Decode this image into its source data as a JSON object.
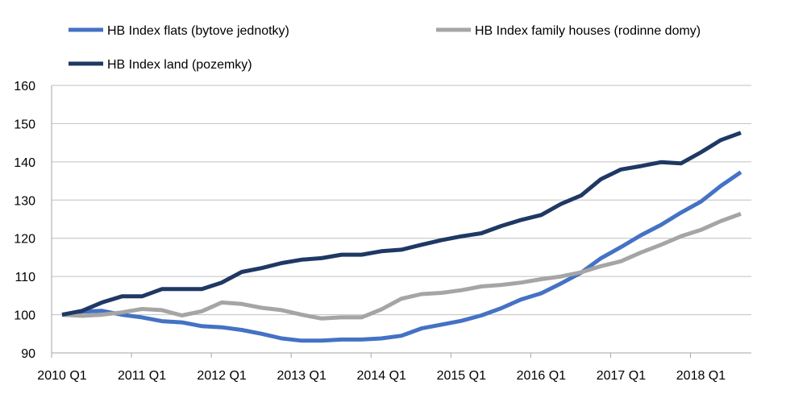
{
  "chart_data": {
    "type": "line",
    "title": "",
    "xlabel": "",
    "ylabel": "",
    "ylim": [
      90,
      160
    ],
    "yticks": [
      90,
      100,
      110,
      120,
      130,
      140,
      150,
      160
    ],
    "grid": true,
    "legend_placement": "top",
    "xtick_labels": [
      "2010 Q1",
      "2011 Q1",
      "2012 Q1",
      "2013 Q1",
      "2014 Q1",
      "2015 Q1",
      "2016 Q1",
      "2017 Q1",
      "2018 Q1"
    ],
    "x": [
      "2010 Q1",
      "2010 Q2",
      "2010 Q3",
      "2010 Q4",
      "2011 Q1",
      "2011 Q2",
      "2011 Q3",
      "2011 Q4",
      "2012 Q1",
      "2012 Q2",
      "2012 Q3",
      "2012 Q4",
      "2013 Q1",
      "2013 Q2",
      "2013 Q3",
      "2013 Q4",
      "2014 Q1",
      "2014 Q2",
      "2014 Q3",
      "2014 Q4",
      "2015 Q1",
      "2015 Q2",
      "2015 Q3",
      "2015 Q4",
      "2016 Q1",
      "2016 Q2",
      "2016 Q3",
      "2016 Q4",
      "2017 Q1",
      "2017 Q2",
      "2017 Q3",
      "2017 Q4",
      "2018 Q1",
      "2018 Q2",
      "2018 Q3"
    ],
    "series": [
      {
        "name": "HB Index flats (bytove jednotky)",
        "color": "#4472c4",
        "values": [
          100,
          100.8,
          101,
          100,
          99.3,
          98.3,
          98,
          97,
          96.7,
          96,
          95,
          93.8,
          93.2,
          93.2,
          93.5,
          93.5,
          93.8,
          94.5,
          96.4,
          97.4,
          98.4,
          99.8,
          101.7,
          104,
          105.6,
          108.2,
          111,
          114.8,
          117.7,
          120.8,
          123.5,
          126.7,
          129.6,
          133.7,
          137.3
        ]
      },
      {
        "name": "HB Index family houses (rodinne domy)",
        "color": "#a5a5a5",
        "values": [
          100,
          99.7,
          100,
          100.6,
          101.5,
          101.2,
          99.8,
          100.9,
          103.2,
          102.8,
          101.8,
          101.2,
          100,
          99,
          99.3,
          99.3,
          101.4,
          104.2,
          105.4,
          105.7,
          106.4,
          107.4,
          107.8,
          108.4,
          109.3,
          110,
          111.1,
          112.7,
          114,
          116.3,
          118.3,
          120.5,
          122.2,
          124.5,
          126.4
        ]
      },
      {
        "name": "HB Index land (pozemky)",
        "color": "#1f3864",
        "values": [
          100,
          101,
          103.2,
          104.8,
          104.8,
          106.7,
          106.7,
          106.7,
          108.4,
          111.2,
          112.2,
          113.5,
          114.4,
          114.8,
          115.7,
          115.7,
          116.6,
          117,
          118.3,
          119.5,
          120.5,
          121.3,
          123.2,
          124.8,
          126.1,
          129,
          131.2,
          135.5,
          138,
          138.9,
          139.9,
          139.6,
          142.5,
          145.7,
          147.6
        ]
      }
    ]
  }
}
